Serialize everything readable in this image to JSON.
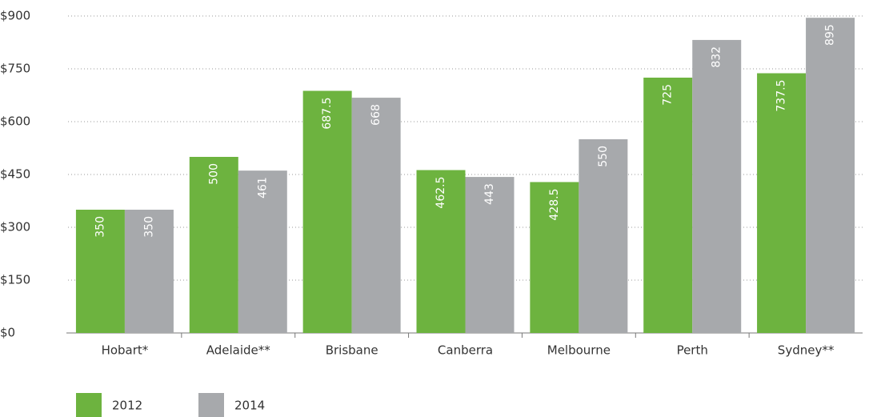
{
  "chart_data": {
    "type": "bar",
    "categories": [
      "Hobart*",
      "Adelaide**",
      "Brisbane",
      "Canberra",
      "Melbourne",
      "Perth",
      "Sydney**"
    ],
    "series": [
      {
        "name": "2012",
        "color": "#6db33f",
        "values": [
          350,
          500,
          687.5,
          462.5,
          428.5,
          725,
          737.5
        ]
      },
      {
        "name": "2014",
        "color": "#a7a9ac",
        "values": [
          350,
          461,
          668,
          443,
          550,
          832,
          895
        ]
      }
    ],
    "ylim": [
      0,
      900
    ],
    "yticks": [
      {
        "value": 0,
        "label": "$0"
      },
      {
        "value": 150,
        "label": "$150"
      },
      {
        "value": 300,
        "label": "$300"
      },
      {
        "value": 450,
        "label": "$450"
      },
      {
        "value": 600,
        "label": "$600"
      },
      {
        "value": 750,
        "label": "$750"
      },
      {
        "value": 900,
        "label": "$900"
      }
    ],
    "grid": true,
    "legend": "bottom-left"
  }
}
